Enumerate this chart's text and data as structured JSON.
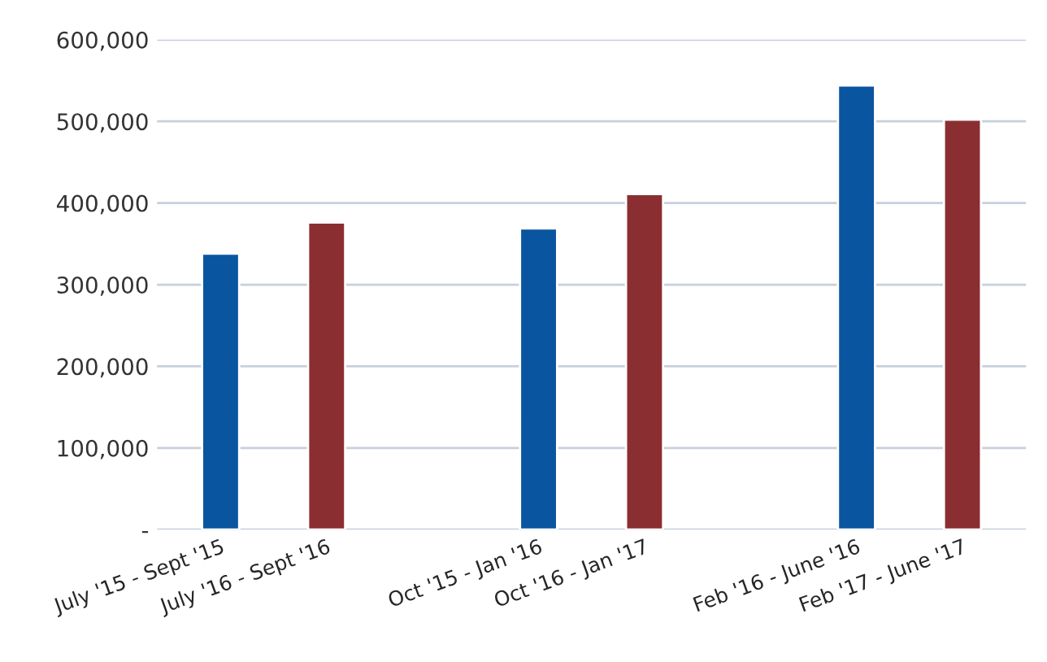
{
  "chart_data": {
    "type": "bar",
    "categories": [
      "July '15 - Sept '15",
      "July '16 - Sept '16",
      null,
      "Oct '15 - Jan '16",
      "Oct '16 - Jan '17",
      null,
      "Feb '16 - June '16",
      "Feb '17 - June '17"
    ],
    "values": [
      338000,
      376000,
      null,
      369000,
      411000,
      null,
      544000,
      502000
    ],
    "colors": [
      "#0a55a0",
      "#8b2e32",
      null,
      "#0a55a0",
      "#8b2e32",
      null,
      "#0a55a0",
      "#8b2e32"
    ],
    "ylim": [
      0,
      600000
    ],
    "yticks": [
      {
        "value": 0,
        "label": "-"
      },
      {
        "value": 100000,
        "label": "100,000"
      },
      {
        "value": 200000,
        "label": "200,000"
      },
      {
        "value": 300000,
        "label": "300,000"
      },
      {
        "value": 400000,
        "label": "400,000"
      },
      {
        "value": 500000,
        "label": "500,000"
      },
      {
        "value": 600000,
        "label": "600,000"
      }
    ],
    "grid": "y"
  }
}
